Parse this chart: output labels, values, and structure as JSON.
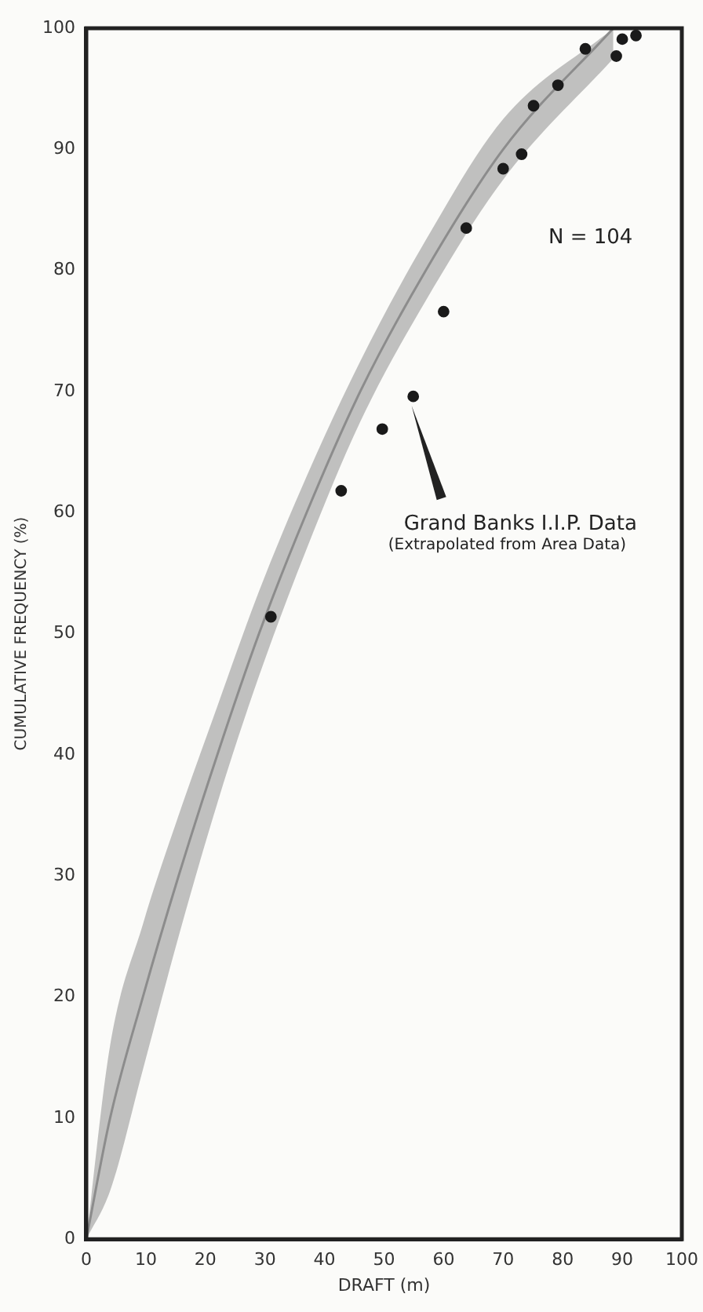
{
  "chart_data": {
    "type": "scatter",
    "xlabel": "DRAFT (m)",
    "ylabel": "CUMULATIVE FREQUENCY (%)",
    "xlim": [
      0,
      100
    ],
    "xticks": [
      0,
      10,
      20,
      30,
      40,
      50,
      60,
      70,
      80,
      90,
      100
    ],
    "ylim": [
      0,
      100
    ],
    "yticks": [
      0,
      10,
      20,
      30,
      40,
      50,
      60,
      70,
      80,
      90,
      100
    ],
    "grid": false,
    "legend": false,
    "marker": "circle",
    "annotations": [
      "N = 104",
      {
        "text": "Grand Banks I.I.P. Data",
        "x": 54.9,
        "y": 69.6
      },
      "(Extrapolated from Area Data)"
    ],
    "series": [
      {
        "type": "line",
        "marker": "none",
        "color": "#8c8c8c",
        "x": [
          0,
          4,
          9.5,
          15.5,
          22,
          29,
          37,
          46,
          57,
          70,
          88.5
        ],
        "values": [
          0,
          10,
          20,
          30,
          40,
          50,
          60,
          70,
          80,
          90,
          100
        ],
        "lower": [
          0,
          4,
          14,
          25,
          36,
          46.5,
          57,
          67.5,
          77.5,
          87.5,
          97.5
        ],
        "upper": [
          0,
          16,
          26,
          35,
          44,
          53.5,
          63,
          72.5,
          82.5,
          92.5,
          100
        ]
      },
      {
        "color": "#1a1a1a",
        "x": [
          31,
          42.8,
          49.7,
          54.9,
          60,
          63.8,
          70,
          73.1,
          75.1,
          79.2,
          83.8,
          89,
          90,
          92.3
        ],
        "values": [
          51.4,
          61.8,
          66.9,
          69.6,
          76.6,
          83.5,
          88.4,
          89.6,
          93.6,
          95.3,
          98.3,
          97.7,
          99.1,
          99.4
        ]
      }
    ]
  }
}
